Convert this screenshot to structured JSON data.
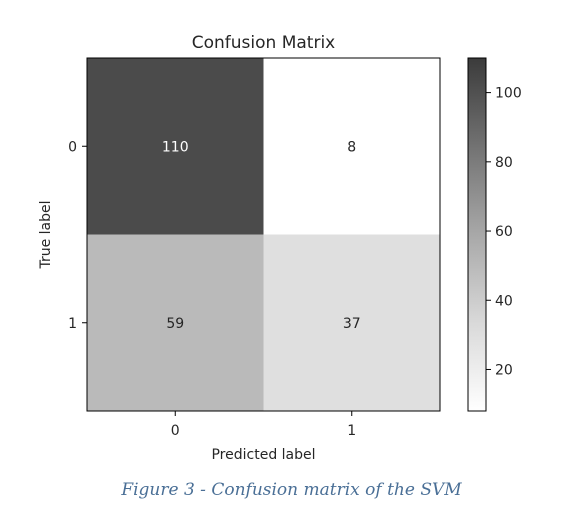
{
  "chart_data": {
    "type": "heatmap",
    "title": "Confusion Matrix",
    "xlabel": "Predicted label",
    "ylabel": "True label",
    "x_categories": [
      "0",
      "1"
    ],
    "y_categories": [
      "0",
      "1"
    ],
    "matrix": [
      [
        110,
        8
      ],
      [
        59,
        37
      ]
    ],
    "colormap": "Greys",
    "vmin": 8,
    "vmax": 110,
    "colorbar": {
      "ticks": [
        20,
        40,
        60,
        80,
        100
      ],
      "range": [
        8,
        110
      ]
    }
  },
  "caption": "Figure 3 - Confusion matrix of the SVM"
}
